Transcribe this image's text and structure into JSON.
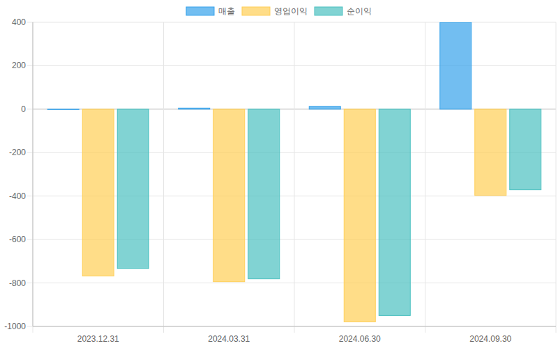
{
  "chart_data": {
    "type": "bar",
    "categories": [
      "2023.12.31",
      "2024.03.31",
      "2024.06.30",
      "2024.09.30"
    ],
    "series": [
      {
        "name": "매출",
        "color": "#36a2eb",
        "values": [
          0,
          5,
          13,
          400
        ]
      },
      {
        "name": "영업이익",
        "color": "#ffce56",
        "values": [
          -768,
          -794,
          -979,
          -397
        ]
      },
      {
        "name": "순이익",
        "color": "#4bc0c0",
        "values": [
          -733,
          -781,
          -950,
          -371
        ]
      }
    ],
    "ylim": [
      -1000,
      400
    ],
    "yticks": [
      -1000,
      -800,
      -600,
      -400,
      -200,
      0,
      200,
      400
    ],
    "grid": true,
    "legend": "top"
  }
}
